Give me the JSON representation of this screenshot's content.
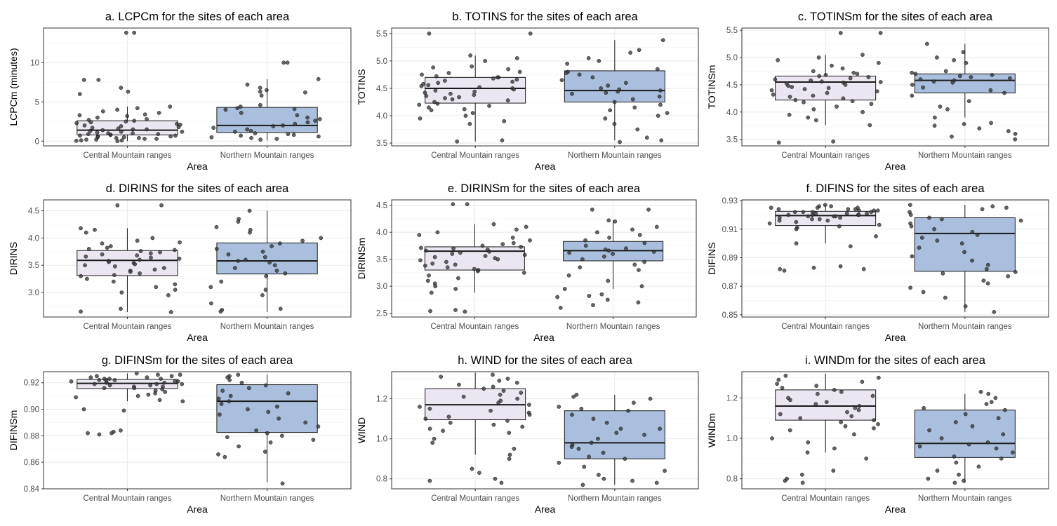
{
  "figure": {
    "colors": {
      "Central Mountain ranges": "#ece6f2",
      "Northern Mountain ranges": "#a9bfdd",
      "box_outline": "#1a1a1a",
      "point_fill": "#3a3a3a",
      "grid_major": "#ebebeb",
      "grid_minor": "#f4f4f4"
    },
    "grid": true
  },
  "chart_data": [
    {
      "type": "box",
      "title": "a. LCPCm for the sites of each area",
      "xlabel": "Area",
      "ylabel": "LCPCm (minutes)",
      "categories": [
        "Central Mountain ranges",
        "Northern Mountain ranges"
      ],
      "ylim": [
        -0.6,
        14.4
      ],
      "yticks": [
        0,
        5,
        10
      ],
      "ytick_labels": [
        "0",
        "5",
        "10"
      ],
      "boxes": [
        {
          "q1": 0.8,
          "median": 1.4,
          "q3": 2.6,
          "whisker_low": 0.0,
          "whisker_high": 4.4
        },
        {
          "q1": 1.1,
          "median": 2.0,
          "q3": 4.3,
          "whisker_low": 0.1,
          "whisker_high": 7.9
        }
      ],
      "points": [
        [
          13.8,
          13.8,
          7.8,
          7.8,
          6.8,
          6.3,
          6.0,
          4.4,
          4.2,
          4.0,
          3.8,
          3.6,
          3.4,
          3.3,
          3.2,
          3.0,
          2.8,
          2.7,
          2.6,
          2.5,
          2.4,
          2.3,
          2.2,
          2.1,
          2.0,
          1.9,
          1.8,
          1.7,
          1.6,
          1.5,
          1.5,
          1.4,
          1.3,
          1.2,
          1.2,
          1.1,
          1.0,
          1.0,
          0.9,
          0.9,
          0.8,
          0.8,
          0.7,
          0.7,
          0.6,
          0.6,
          0.5,
          0.5,
          0.4,
          0.4,
          0.3,
          0.3,
          0.2,
          0.2,
          0.1,
          0.1,
          0.05,
          0.0
        ],
        [
          10.0,
          10.0,
          7.9,
          7.2,
          6.8,
          6.5,
          6.3,
          6.2,
          5.8,
          4.6,
          4.4,
          4.2,
          4.1,
          4.0,
          3.6,
          3.3,
          3.0,
          2.8,
          2.6,
          2.4,
          2.2,
          2.0,
          1.9,
          1.7,
          1.5,
          1.3,
          1.2,
          1.0,
          0.9,
          0.8,
          0.7,
          0.6,
          0.5,
          0.4,
          0.3,
          0.2
        ]
      ]
    },
    {
      "type": "box",
      "title": "b. TOTINS for the sites of each area",
      "xlabel": "Area",
      "ylabel": "TOTINS",
      "categories": [
        "Central Mountain ranges",
        "Northern Mountain ranges"
      ],
      "ylim": [
        3.45,
        5.6
      ],
      "yticks": [
        3.5,
        4.0,
        4.5,
        5.0,
        5.5
      ],
      "ytick_labels": [
        "3.5",
        "4.0",
        "4.5",
        "5.0",
        "5.5"
      ],
      "boxes": [
        {
          "q1": 4.23,
          "median": 4.5,
          "q3": 4.7,
          "whisker_low": 3.53,
          "whisker_high": 5.1
        },
        {
          "q1": 4.25,
          "median": 4.46,
          "q3": 4.82,
          "whisker_low": 3.55,
          "whisker_high": 5.38
        }
      ],
      "points": [
        [
          5.5,
          5.5,
          5.1,
          5.05,
          5.0,
          4.9,
          4.88,
          4.85,
          4.8,
          4.78,
          4.75,
          4.72,
          4.7,
          4.7,
          4.68,
          4.66,
          4.64,
          4.62,
          4.6,
          4.58,
          4.56,
          4.54,
          4.52,
          4.5,
          4.48,
          4.46,
          4.44,
          4.42,
          4.4,
          4.38,
          4.36,
          4.34,
          4.32,
          4.3,
          4.28,
          4.25,
          4.22,
          4.2,
          4.18,
          4.15,
          4.12,
          4.1,
          4.05,
          4.0,
          3.95,
          3.9,
          3.85,
          3.55,
          3.53
        ],
        [
          5.38,
          5.2,
          5.15,
          5.05,
          5.0,
          4.95,
          4.85,
          4.8,
          4.78,
          4.75,
          4.7,
          4.65,
          4.6,
          4.55,
          4.5,
          4.48,
          4.46,
          4.44,
          4.42,
          4.4,
          4.35,
          4.3,
          4.25,
          4.2,
          4.15,
          4.1,
          4.05,
          4.0,
          3.95,
          3.85,
          3.75,
          3.6,
          3.55,
          3.52
        ]
      ]
    },
    {
      "type": "box",
      "title": "c. TOTINSm for the sites of each area",
      "xlabel": "Area",
      "ylabel": "TOTINSm",
      "categories": [
        "Central Mountain ranges",
        "Northern Mountain ranges"
      ],
      "ylim": [
        3.38,
        5.54
      ],
      "yticks": [
        3.5,
        4.0,
        4.5,
        5.0,
        5.5
      ],
      "ytick_labels": [
        "3.5",
        "4.0",
        "4.5",
        "5.0",
        "5.5"
      ],
      "boxes": [
        {
          "q1": 4.22,
          "median": 4.55,
          "q3": 4.66,
          "whisker_low": 3.76,
          "whisker_high": 5.05
        },
        {
          "q1": 4.35,
          "median": 4.58,
          "q3": 4.7,
          "whisker_low": 3.9,
          "whisker_high": 5.25
        }
      ],
      "points": [
        [
          5.45,
          5.45,
          5.05,
          5.0,
          4.95,
          4.9,
          4.85,
          4.8,
          4.75,
          4.72,
          4.7,
          4.68,
          4.66,
          4.64,
          4.62,
          4.6,
          4.58,
          4.56,
          4.55,
          4.54,
          4.52,
          4.5,
          4.48,
          4.46,
          4.44,
          4.42,
          4.4,
          4.38,
          4.35,
          4.32,
          4.3,
          4.28,
          4.25,
          4.22,
          4.2,
          4.18,
          4.15,
          4.1,
          4.05,
          4.0,
          3.95,
          3.9,
          3.85,
          3.76,
          3.46,
          3.44
        ],
        [
          5.25,
          5.1,
          5.0,
          4.95,
          4.9,
          4.75,
          4.72,
          4.7,
          4.68,
          4.66,
          4.64,
          4.62,
          4.6,
          4.58,
          4.56,
          4.54,
          4.5,
          4.45,
          4.4,
          4.35,
          4.3,
          4.2,
          4.1,
          4.05,
          3.9,
          3.8,
          3.78,
          3.75,
          3.7,
          3.65,
          3.6,
          3.55,
          3.5
        ]
      ]
    },
    {
      "type": "box",
      "title": "d. DIRINS for the sites of each area",
      "xlabel": "Area",
      "ylabel": "DIRINS",
      "categories": [
        "Central Mountain ranges",
        "Northern Mountain ranges"
      ],
      "ylim": [
        2.55,
        4.7
      ],
      "yticks": [
        3.0,
        3.5,
        4.0,
        4.5
      ],
      "ytick_labels": [
        "3.0",
        "3.5",
        "4.0",
        "4.5"
      ],
      "boxes": [
        {
          "q1": 3.31,
          "median": 3.59,
          "q3": 3.77,
          "whisker_low": 2.64,
          "whisker_high": 4.18
        },
        {
          "q1": 3.34,
          "median": 3.58,
          "q3": 3.91,
          "whisker_low": 2.64,
          "whisker_high": 4.5
        }
      ],
      "points": [
        [
          4.6,
          4.6,
          4.18,
          4.15,
          4.1,
          4.0,
          3.95,
          3.92,
          3.9,
          3.85,
          3.82,
          3.8,
          3.78,
          3.76,
          3.74,
          3.72,
          3.7,
          3.68,
          3.66,
          3.64,
          3.62,
          3.6,
          3.58,
          3.56,
          3.54,
          3.52,
          3.5,
          3.48,
          3.45,
          3.42,
          3.4,
          3.38,
          3.35,
          3.32,
          3.3,
          3.25,
          3.2,
          3.15,
          3.1,
          3.05,
          3.0,
          2.95,
          2.7,
          2.65,
          2.64
        ],
        [
          4.5,
          4.35,
          4.3,
          4.2,
          4.15,
          4.1,
          4.0,
          3.95,
          3.9,
          3.85,
          3.8,
          3.75,
          3.7,
          3.65,
          3.6,
          3.58,
          3.55,
          3.5,
          3.45,
          3.4,
          3.35,
          3.3,
          3.2,
          3.1,
          3.05,
          2.95,
          2.8,
          2.7,
          2.68,
          2.65
        ]
      ]
    },
    {
      "type": "box",
      "title": "e. DIRINSm for the sites of each area",
      "xlabel": "Area",
      "ylabel": "DIRINSm",
      "categories": [
        "Central Mountain ranges",
        "Northern Mountain ranges"
      ],
      "ylim": [
        2.43,
        4.6
      ],
      "yticks": [
        2.5,
        3.0,
        3.5,
        4.0,
        4.5
      ],
      "ytick_labels": [
        "2.5",
        "3.0",
        "3.5",
        "4.0",
        "4.5"
      ],
      "boxes": [
        {
          "q1": 3.3,
          "median": 3.65,
          "q3": 3.73,
          "whisker_low": 2.88,
          "whisker_high": 4.15
        },
        {
          "q1": 3.47,
          "median": 3.66,
          "q3": 3.83,
          "whisker_low": 2.95,
          "whisker_high": 4.22
        }
      ],
      "points": [
        [
          4.52,
          4.52,
          4.15,
          4.1,
          4.05,
          4.0,
          3.95,
          3.9,
          3.85,
          3.8,
          3.78,
          3.75,
          3.73,
          3.71,
          3.7,
          3.68,
          3.66,
          3.64,
          3.62,
          3.6,
          3.58,
          3.56,
          3.54,
          3.52,
          3.5,
          3.48,
          3.45,
          3.42,
          3.4,
          3.38,
          3.35,
          3.32,
          3.3,
          3.28,
          3.25,
          3.2,
          3.15,
          3.1,
          3.05,
          3.0,
          2.95,
          2.88,
          2.56,
          2.54,
          2.53
        ],
        [
          4.42,
          4.42,
          4.22,
          4.2,
          4.1,
          4.05,
          4.0,
          3.95,
          3.9,
          3.85,
          3.8,
          3.75,
          3.7,
          3.68,
          3.66,
          3.64,
          3.62,
          3.6,
          3.55,
          3.5,
          3.45,
          3.4,
          3.35,
          3.3,
          3.2,
          3.1,
          3.0,
          2.95,
          2.85,
          2.82,
          2.8,
          2.75,
          2.7,
          2.65,
          2.6
        ]
      ]
    },
    {
      "type": "box",
      "title": "f. DIFINS for the sites of each area",
      "xlabel": "Area",
      "ylabel": "DIFINS",
      "categories": [
        "Central Mountain ranges",
        "Northern Mountain ranges"
      ],
      "ylim": [
        0.8485,
        0.9305
      ],
      "yticks": [
        0.85,
        0.87,
        0.89,
        0.91,
        0.93
      ],
      "ytick_labels": [
        "0.85",
        "0.87",
        "0.89",
        "0.91",
        "0.93"
      ],
      "boxes": [
        {
          "q1": 0.9125,
          "median": 0.9195,
          "q3": 0.9225,
          "whisker_low": 0.9,
          "whisker_high": 0.927
        },
        {
          "q1": 0.8805,
          "median": 0.907,
          "q3": 0.918,
          "whisker_low": 0.852,
          "whisker_high": 0.927
        }
      ],
      "points": [
        [
          0.927,
          0.926,
          0.926,
          0.925,
          0.925,
          0.925,
          0.924,
          0.924,
          0.924,
          0.923,
          0.923,
          0.923,
          0.922,
          0.922,
          0.922,
          0.922,
          0.921,
          0.921,
          0.921,
          0.92,
          0.92,
          0.92,
          0.92,
          0.919,
          0.919,
          0.919,
          0.918,
          0.918,
          0.917,
          0.917,
          0.916,
          0.916,
          0.915,
          0.914,
          0.913,
          0.912,
          0.911,
          0.91,
          0.905,
          0.9,
          0.898,
          0.884,
          0.883,
          0.882,
          0.882,
          0.881
        ],
        [
          0.927,
          0.926,
          0.925,
          0.924,
          0.922,
          0.92,
          0.918,
          0.917,
          0.916,
          0.914,
          0.912,
          0.91,
          0.908,
          0.906,
          0.904,
          0.902,
          0.9,
          0.897,
          0.894,
          0.891,
          0.888,
          0.885,
          0.882,
          0.88,
          0.879,
          0.877,
          0.874,
          0.872,
          0.869,
          0.866,
          0.862,
          0.856,
          0.852
        ]
      ]
    },
    {
      "type": "box",
      "title": "g. DIFINSm for the sites of each area",
      "xlabel": "Area",
      "ylabel": "DIFINSm",
      "categories": [
        "Central Mountain ranges",
        "Northern Mountain ranges"
      ],
      "ylim": [
        0.84,
        0.9283
      ],
      "yticks": [
        0.84,
        0.86,
        0.88,
        0.9,
        0.92
      ],
      "ytick_labels": [
        "0.84",
        "0.86",
        "0.88",
        "0.90",
        "0.92"
      ],
      "boxes": [
        {
          "q1": 0.9155,
          "median": 0.9195,
          "q3": 0.9225,
          "whisker_low": 0.906,
          "whisker_high": 0.927
        },
        {
          "q1": 0.8825,
          "median": 0.906,
          "q3": 0.9185,
          "whisker_low": 0.845,
          "whisker_high": 0.926
        }
      ],
      "points": [
        [
          0.927,
          0.926,
          0.926,
          0.925,
          0.925,
          0.924,
          0.924,
          0.923,
          0.923,
          0.923,
          0.922,
          0.922,
          0.922,
          0.921,
          0.921,
          0.921,
          0.92,
          0.92,
          0.92,
          0.919,
          0.919,
          0.919,
          0.918,
          0.918,
          0.917,
          0.917,
          0.916,
          0.916,
          0.915,
          0.914,
          0.913,
          0.912,
          0.911,
          0.91,
          0.909,
          0.907,
          0.906,
          0.9,
          0.899,
          0.884,
          0.883,
          0.882,
          0.882,
          0.881
        ],
        [
          0.926,
          0.925,
          0.924,
          0.922,
          0.92,
          0.918,
          0.916,
          0.914,
          0.912,
          0.91,
          0.908,
          0.906,
          0.904,
          0.902,
          0.9,
          0.898,
          0.896,
          0.893,
          0.89,
          0.887,
          0.884,
          0.882,
          0.88,
          0.879,
          0.877,
          0.875,
          0.872,
          0.868,
          0.866,
          0.864,
          0.844
        ]
      ]
    },
    {
      "type": "box",
      "title": "h. WIND for the sites of each area",
      "xlabel": "Area",
      "ylabel": "WIND",
      "categories": [
        "Central Mountain ranges",
        "Northern Mountain ranges"
      ],
      "ylim": [
        0.75,
        1.335
      ],
      "yticks": [
        0.8,
        1.0,
        1.2
      ],
      "ytick_labels": [
        "0.8",
        "1.0",
        "1.2"
      ],
      "boxes": [
        {
          "q1": 1.095,
          "median": 1.17,
          "q3": 1.25,
          "whisker_low": 0.92,
          "whisker_high": 1.33
        },
        {
          "q1": 0.9,
          "median": 0.98,
          "q3": 1.14,
          "whisker_low": 0.77,
          "whisker_high": 1.22
        }
      ],
      "points": [
        [
          1.32,
          1.31,
          1.3,
          1.29,
          1.28,
          1.27,
          1.26,
          1.25,
          1.24,
          1.23,
          1.22,
          1.21,
          1.2,
          1.19,
          1.18,
          1.17,
          1.16,
          1.15,
          1.14,
          1.13,
          1.12,
          1.11,
          1.1,
          1.09,
          1.08,
          1.07,
          1.06,
          1.05,
          1.04,
          1.03,
          1.0,
          0.98,
          0.95,
          0.92,
          0.9,
          0.85,
          0.83,
          0.8,
          0.79,
          0.78
        ],
        [
          1.22,
          1.21,
          1.2,
          1.18,
          1.16,
          1.15,
          1.14,
          1.12,
          1.1,
          1.08,
          1.05,
          1.05,
          1.03,
          1.02,
          1.0,
          0.98,
          0.97,
          0.96,
          0.95,
          0.93,
          0.91,
          0.9,
          0.88,
          0.86,
          0.84,
          0.82,
          0.8,
          0.79,
          0.78,
          0.77
        ]
      ]
    },
    {
      "type": "box",
      "title": "i. WINDm for the sites of each area",
      "xlabel": "Area",
      "ylabel": "WINDm",
      "categories": [
        "Central Mountain ranges",
        "Northern Mountain ranges"
      ],
      "ylim": [
        0.75,
        1.33
      ],
      "yticks": [
        0.8,
        1.0,
        1.2
      ],
      "ytick_labels": [
        "0.8",
        "1.0",
        "1.2"
      ],
      "boxes": [
        {
          "q1": 1.09,
          "median": 1.16,
          "q3": 1.24,
          "whisker_low": 0.93,
          "whisker_high": 1.32
        },
        {
          "q1": 0.905,
          "median": 0.975,
          "q3": 1.14,
          "whisker_low": 0.78,
          "whisker_high": 1.22
        }
      ],
      "points": [
        [
          1.31,
          1.3,
          1.29,
          1.28,
          1.27,
          1.26,
          1.25,
          1.24,
          1.23,
          1.22,
          1.21,
          1.2,
          1.19,
          1.18,
          1.17,
          1.16,
          1.15,
          1.14,
          1.13,
          1.12,
          1.11,
          1.1,
          1.09,
          1.08,
          1.07,
          1.06,
          1.05,
          1.04,
          1.02,
          1.0,
          0.98,
          0.95,
          0.93,
          0.9,
          0.84,
          0.82,
          0.8,
          0.79,
          0.78
        ],
        [
          1.23,
          1.22,
          1.2,
          1.18,
          1.17,
          1.15,
          1.14,
          1.12,
          1.1,
          1.08,
          1.06,
          1.04,
          1.02,
          1.0,
          0.98,
          0.97,
          0.96,
          0.95,
          0.93,
          0.91,
          0.9,
          0.88,
          0.86,
          0.84,
          0.82,
          0.8,
          0.79,
          0.78
        ]
      ]
    }
  ]
}
